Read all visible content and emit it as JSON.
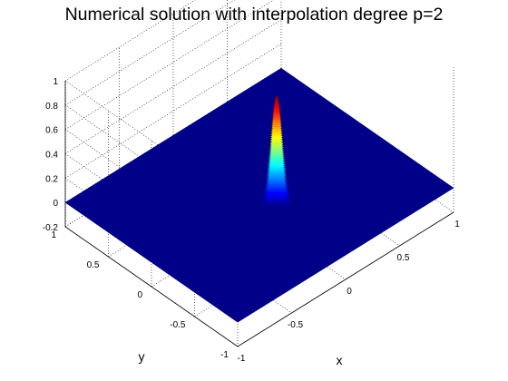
{
  "chart_data": {
    "type": "surface",
    "title": "Numerical solution with interpolation degree p=2",
    "xlabel": "x",
    "ylabel": "y",
    "zlabel": "",
    "xlim": [
      -1,
      1
    ],
    "ylim": [
      -1,
      1
    ],
    "zlim": [
      -0.2,
      1
    ],
    "x_ticks": [
      "-1",
      "-0.5",
      "0",
      "0.5",
      "1"
    ],
    "y_ticks": [
      "-1",
      "-0.5",
      "0",
      "0.5",
      "1"
    ],
    "z_ticks": [
      "-0.2",
      "0",
      "0.2",
      "0.4",
      "0.6",
      "0.8",
      "1"
    ],
    "z_tick_values": [
      -0.2,
      0,
      0.2,
      0.4,
      0.6,
      0.8,
      1
    ],
    "xy_tick_values": [
      -1,
      -0.5,
      0,
      0.5,
      1
    ],
    "grid": true,
    "colormap": "jet",
    "surface": {
      "description_of_values": "flat at 0 over the domain with a single narrow peak",
      "peak_x": 0,
      "peak_y": 0.2,
      "peak_value": 0.92,
      "background_value": 0
    }
  }
}
